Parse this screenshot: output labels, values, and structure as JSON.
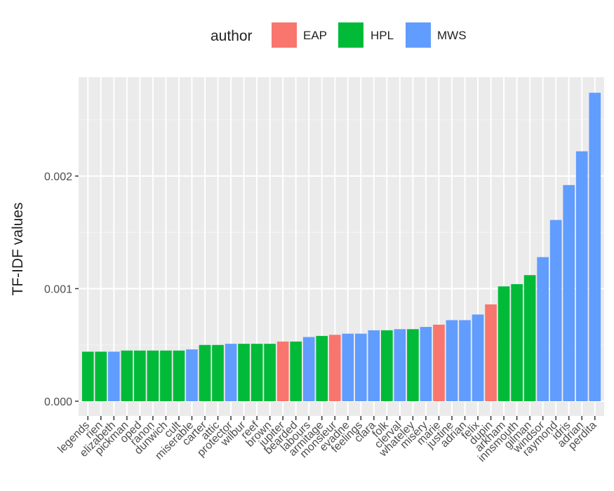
{
  "chart_data": {
    "type": "bar",
    "ylabel": "TF-IDF values",
    "xlabel": "",
    "ylim": [
      0,
      0.0028
    ],
    "y_ticks": [
      "0.000",
      "0.001",
      "0.002"
    ],
    "y_tick_values": [
      0,
      0.001,
      0.002
    ],
    "grid": true,
    "legend": {
      "title": "author",
      "position": "top",
      "entries": [
        {
          "label": "EAP",
          "color": "#F8766D"
        },
        {
          "label": "HPL",
          "color": "#00BA38"
        },
        {
          "label": "MWS",
          "color": "#619CFF"
        }
      ]
    },
    "categories": [
      "legends",
      "rien",
      "elizabeth",
      "pickman",
      "oped",
      "ranon",
      "dunwich",
      "cult",
      "miserable",
      "carter",
      "attic",
      "protector",
      "wilbur",
      "reef",
      "brown",
      "jupiter",
      "bearded",
      "labours",
      "armitage",
      "monsieur",
      "evadne",
      "feelings",
      "clara",
      "folk",
      "clerval",
      "whateley",
      "misery",
      "marie",
      "justine",
      "adrian",
      "felix",
      "dupin",
      "arkham",
      "innsmouth",
      "gilman",
      "windsor",
      "raymond",
      "idris",
      "adrian",
      "perdita"
    ],
    "values": [
      0.00044,
      0.00044,
      0.00044,
      0.00045,
      0.00045,
      0.00045,
      0.00045,
      0.00045,
      0.00046,
      0.0005,
      0.0005,
      0.00051,
      0.00051,
      0.00051,
      0.00051,
      0.00053,
      0.00053,
      0.00057,
      0.00058,
      0.00059,
      0.0006,
      0.0006,
      0.00063,
      0.00063,
      0.00064,
      0.00064,
      0.00066,
      0.00068,
      0.00072,
      0.00072,
      0.00077,
      0.00086,
      0.00102,
      0.00104,
      0.00112,
      0.00128,
      0.00161,
      0.00192,
      0.00222,
      0.00274
    ],
    "authors": [
      "HPL",
      "HPL",
      "MWS",
      "HPL",
      "HPL",
      "HPL",
      "HPL",
      "HPL",
      "MWS",
      "HPL",
      "HPL",
      "MWS",
      "HPL",
      "HPL",
      "HPL",
      "EAP",
      "HPL",
      "MWS",
      "HPL",
      "EAP",
      "MWS",
      "MWS",
      "MWS",
      "HPL",
      "MWS",
      "HPL",
      "MWS",
      "EAP",
      "MWS",
      "MWS",
      "MWS",
      "EAP",
      "HPL",
      "HPL",
      "HPL",
      "MWS",
      "MWS",
      "MWS",
      "MWS",
      "MWS"
    ]
  }
}
